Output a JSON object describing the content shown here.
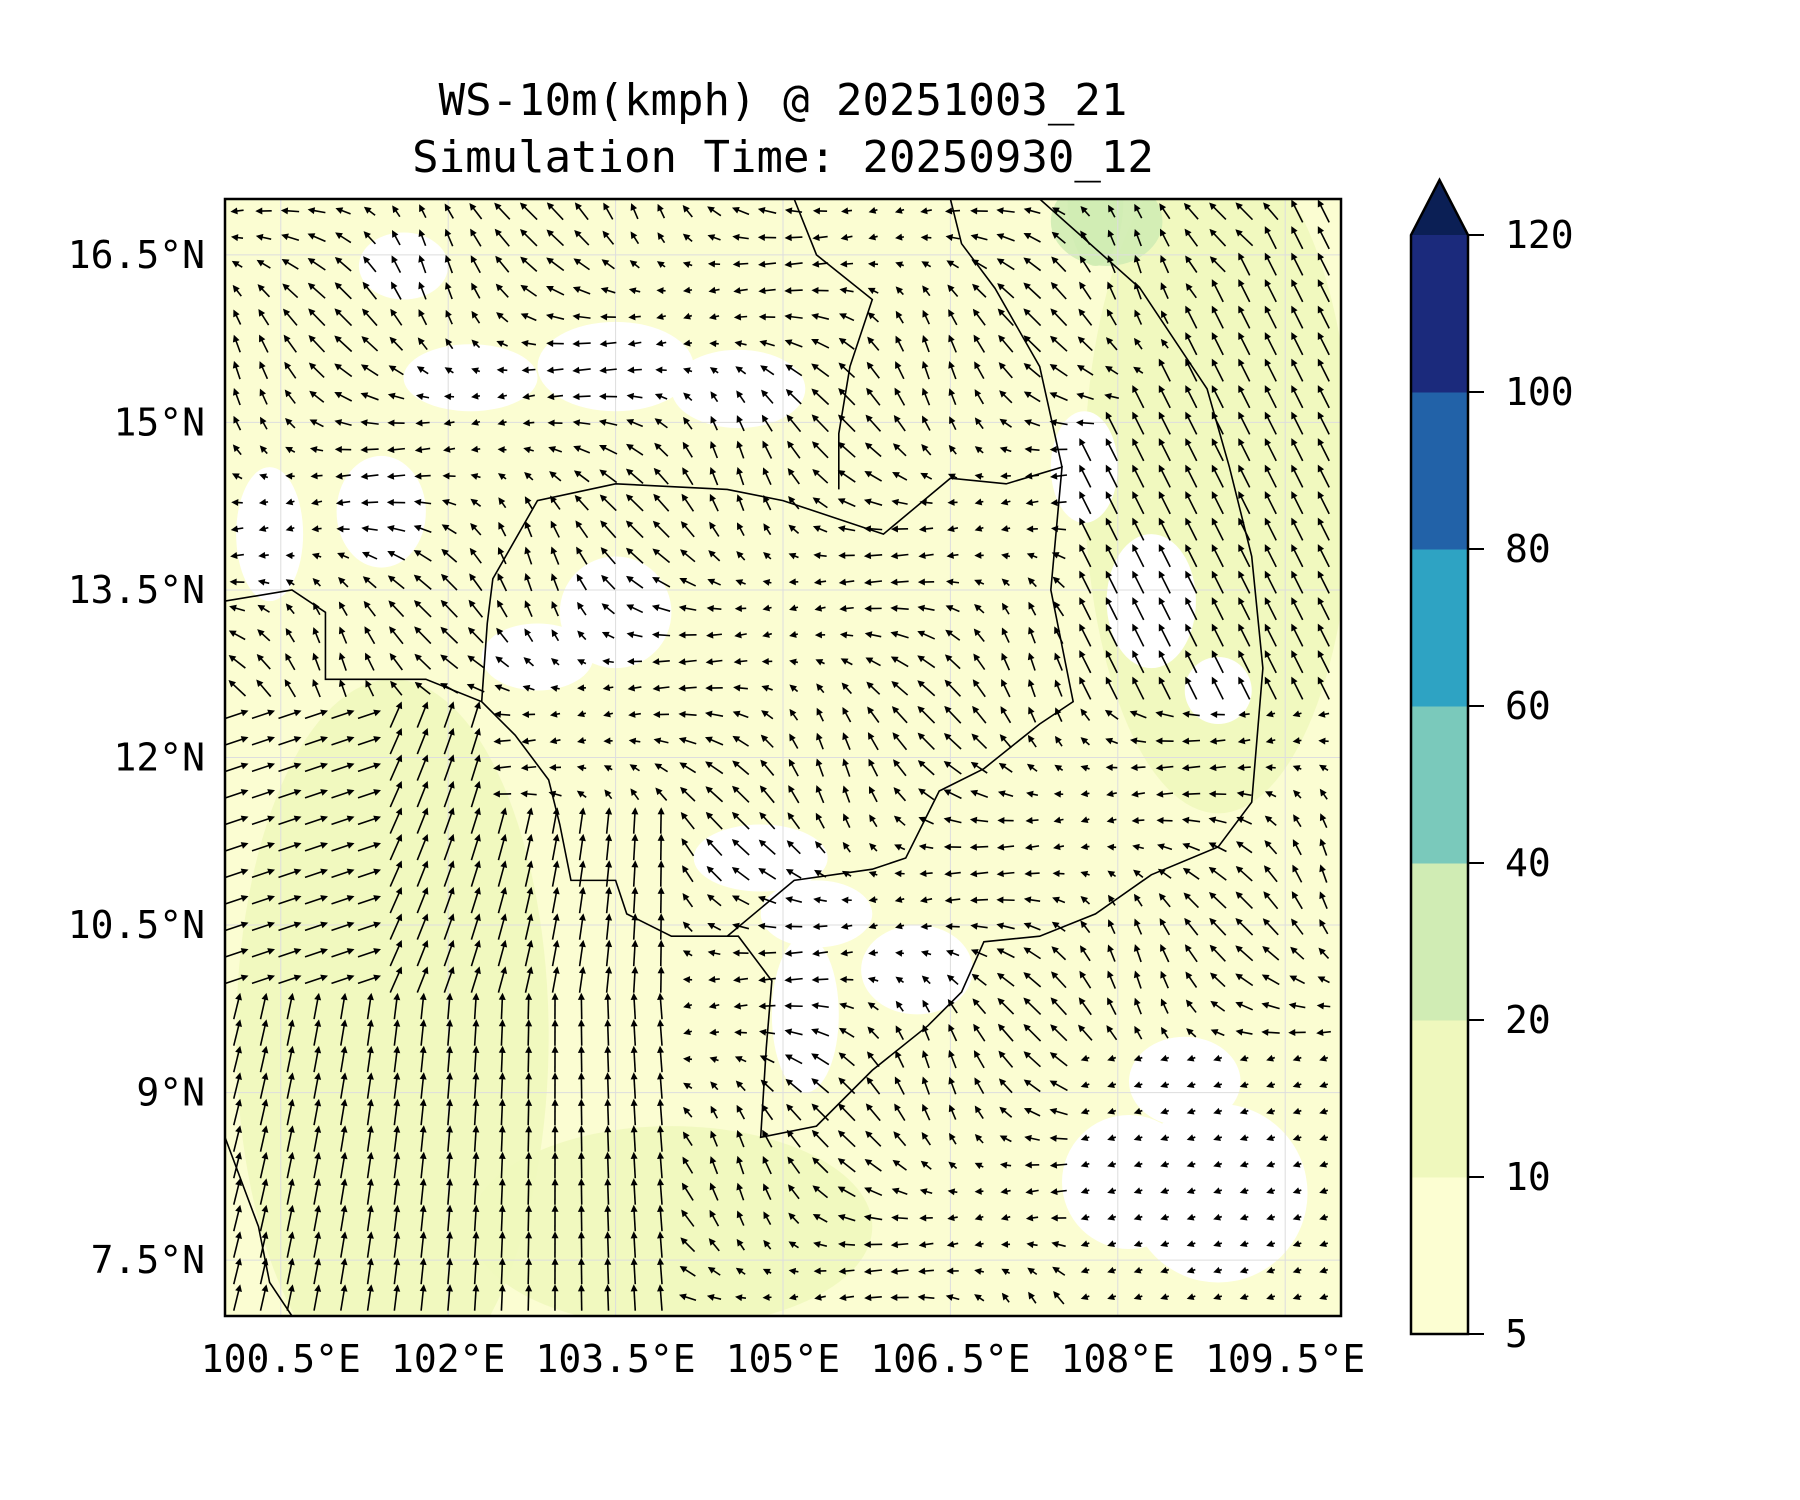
{
  "chart_data": {
    "type": "heatmap",
    "subtype": "filled contour with wind vectors (quiver) on map",
    "title": "WS-10m(kmph) @ 20251003_21",
    "subtitle": "Simulation Time: 20250930_12",
    "xlabel": "",
    "ylabel": "",
    "xlim": [
      100,
      110
    ],
    "ylim": [
      7,
      17
    ],
    "x_ticks": [
      100.5,
      102,
      103.5,
      105,
      106.5,
      108,
      109.5
    ],
    "x_tick_labels": [
      "100.5°E",
      "102°E",
      "103.5°E",
      "105°E",
      "106.5°E",
      "108°E",
      "109.5°E"
    ],
    "y_ticks": [
      16.5,
      15,
      13.5,
      12,
      10.5,
      9,
      7.5
    ],
    "y_tick_labels": [
      "16.5°N",
      "15°N",
      "13.5°N",
      "12°N",
      "10.5°N",
      "9°N",
      "7.5°N"
    ],
    "grid": true,
    "colorbar": {
      "levels": [
        5,
        10,
        20,
        40,
        60,
        80,
        100,
        120
      ],
      "tick_labels": [
        "5",
        "10",
        "20",
        "40",
        "60",
        "80",
        "100",
        "120"
      ],
      "colors": [
        "#fcfed2",
        "#eff8bd",
        "#d0ecb4",
        "#7ac9bb",
        "#2ea3c3",
        "#2262a8",
        "#1b2a7c"
      ],
      "extend_color": "#0b1f55",
      "extend": "max",
      "placement": "right"
    },
    "field_summary": {
      "dominant_range_kmph": [
        5,
        20
      ],
      "max_region": "northeast offshore (20-40 km/h)",
      "calm_regions": "inland patches and south-east sea below 5 km/h"
    }
  }
}
